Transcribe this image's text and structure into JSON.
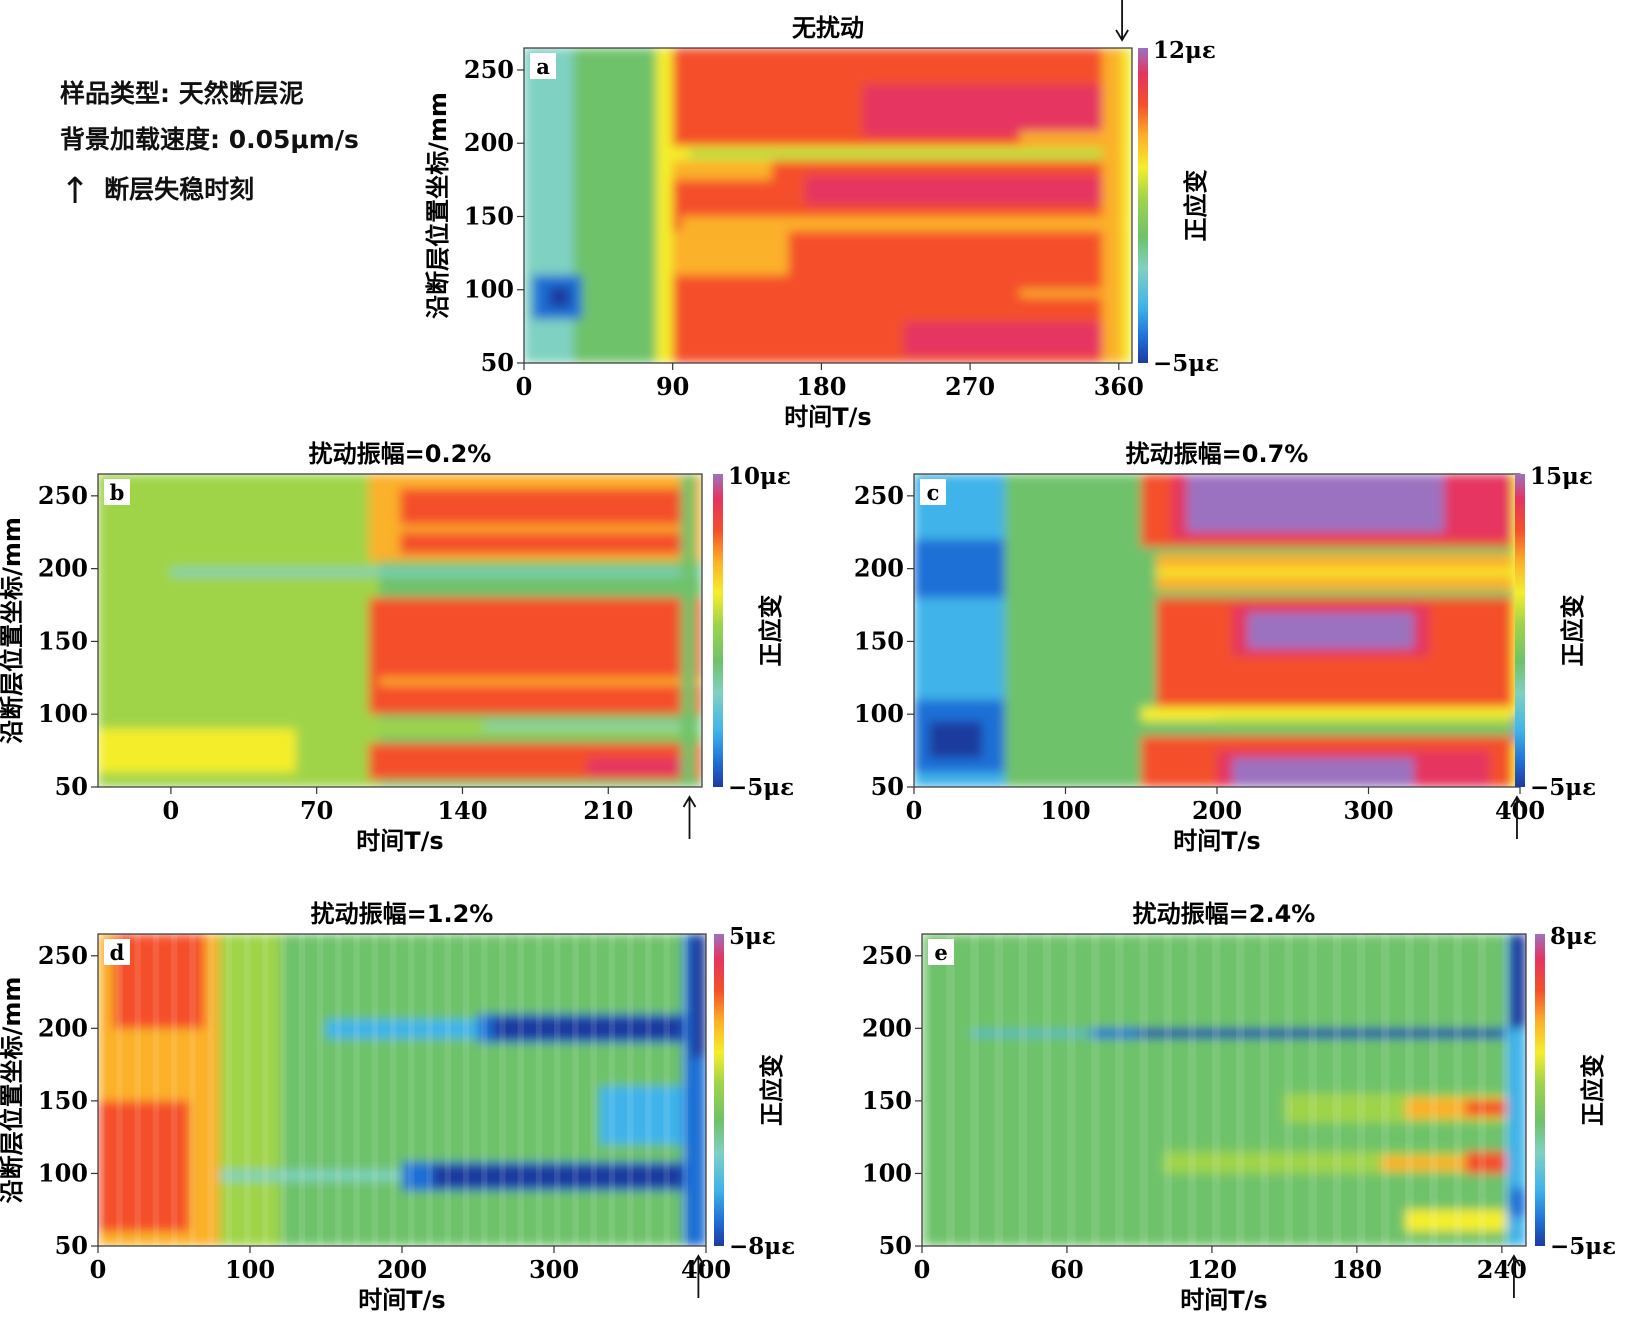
{
  "legend": {
    "sample_type": "样品类型: 天然断层泥",
    "loading_rate": "背景加载速度: 0.05μm/s",
    "arrow_glyph": "↑",
    "arrow_label": "断层失稳时刻"
  },
  "chart_data": [
    {
      "type": "heatmap",
      "panel_letter": "a",
      "title": "无扰动",
      "xlabel": "时间T/s",
      "ylabel": "沿断层位置坐标/mm",
      "colorbar_label": "正应变",
      "x_ticks": [
        0,
        90,
        180,
        270,
        360
      ],
      "y_ticks": [
        50,
        100,
        150,
        200,
        250
      ],
      "xlim": [
        0,
        368
      ],
      "ylim": [
        50,
        265
      ],
      "color_range": [
        -5,
        12
      ],
      "color_min_label": "−5με",
      "color_max_label": "12με",
      "instability_time_s": 362,
      "arrow_position": "top",
      "grid": false
    },
    {
      "type": "heatmap",
      "panel_letter": "b",
      "title": "扰动振幅=0.2%",
      "xlabel": "时间T/s",
      "ylabel": "沿断层位置坐标/mm",
      "colorbar_label": "正应变",
      "x_ticks": [
        0,
        70,
        140,
        210
      ],
      "y_ticks": [
        50,
        100,
        150,
        200,
        250
      ],
      "xlim": [
        -35,
        255
      ],
      "ylim": [
        50,
        265
      ],
      "color_range": [
        -5,
        10
      ],
      "color_min_label": "−5με",
      "color_max_label": "10με",
      "instability_time_s": 249,
      "arrow_position": "bottom",
      "grid": false
    },
    {
      "type": "heatmap",
      "panel_letter": "c",
      "title": "扰动振幅=0.7%",
      "xlabel": "时间T/s",
      "ylabel": "",
      "colorbar_label": "正应变",
      "x_ticks": [
        0,
        100,
        200,
        300,
        400
      ],
      "y_ticks": [
        50,
        100,
        150,
        200,
        250
      ],
      "xlim": [
        0,
        400
      ],
      "ylim": [
        50,
        265
      ],
      "color_range": [
        -5,
        15
      ],
      "color_min_label": "−5με",
      "color_max_label": "15με",
      "instability_time_s": 398,
      "arrow_position": "bottom",
      "grid": false
    },
    {
      "type": "heatmap",
      "panel_letter": "d",
      "title": "扰动振幅=1.2%",
      "xlabel": "时间T/s",
      "ylabel": "沿断层位置坐标/mm",
      "colorbar_label": "正应变",
      "x_ticks": [
        0,
        100,
        200,
        300,
        400
      ],
      "y_ticks": [
        50,
        100,
        150,
        200,
        250
      ],
      "xlim": [
        0,
        400
      ],
      "ylim": [
        50,
        265
      ],
      "color_range": [
        -8,
        5
      ],
      "color_min_label": "−8με",
      "color_max_label": "5με",
      "instability_time_s": 395,
      "arrow_position": "bottom",
      "grid": false
    },
    {
      "type": "heatmap",
      "panel_letter": "e",
      "title": "扰动振幅=2.4%",
      "xlabel": "时间T/s",
      "ylabel": "",
      "colorbar_label": "正应变",
      "x_ticks": [
        0,
        60,
        120,
        180,
        240
      ],
      "y_ticks": [
        50,
        100,
        150,
        200,
        250
      ],
      "xlim": [
        0,
        250
      ],
      "ylim": [
        50,
        265
      ],
      "color_range": [
        -5,
        8
      ],
      "color_min_label": "−5με",
      "color_max_label": "8με",
      "instability_time_s": 245,
      "arrow_position": "bottom",
      "grid": false
    }
  ]
}
